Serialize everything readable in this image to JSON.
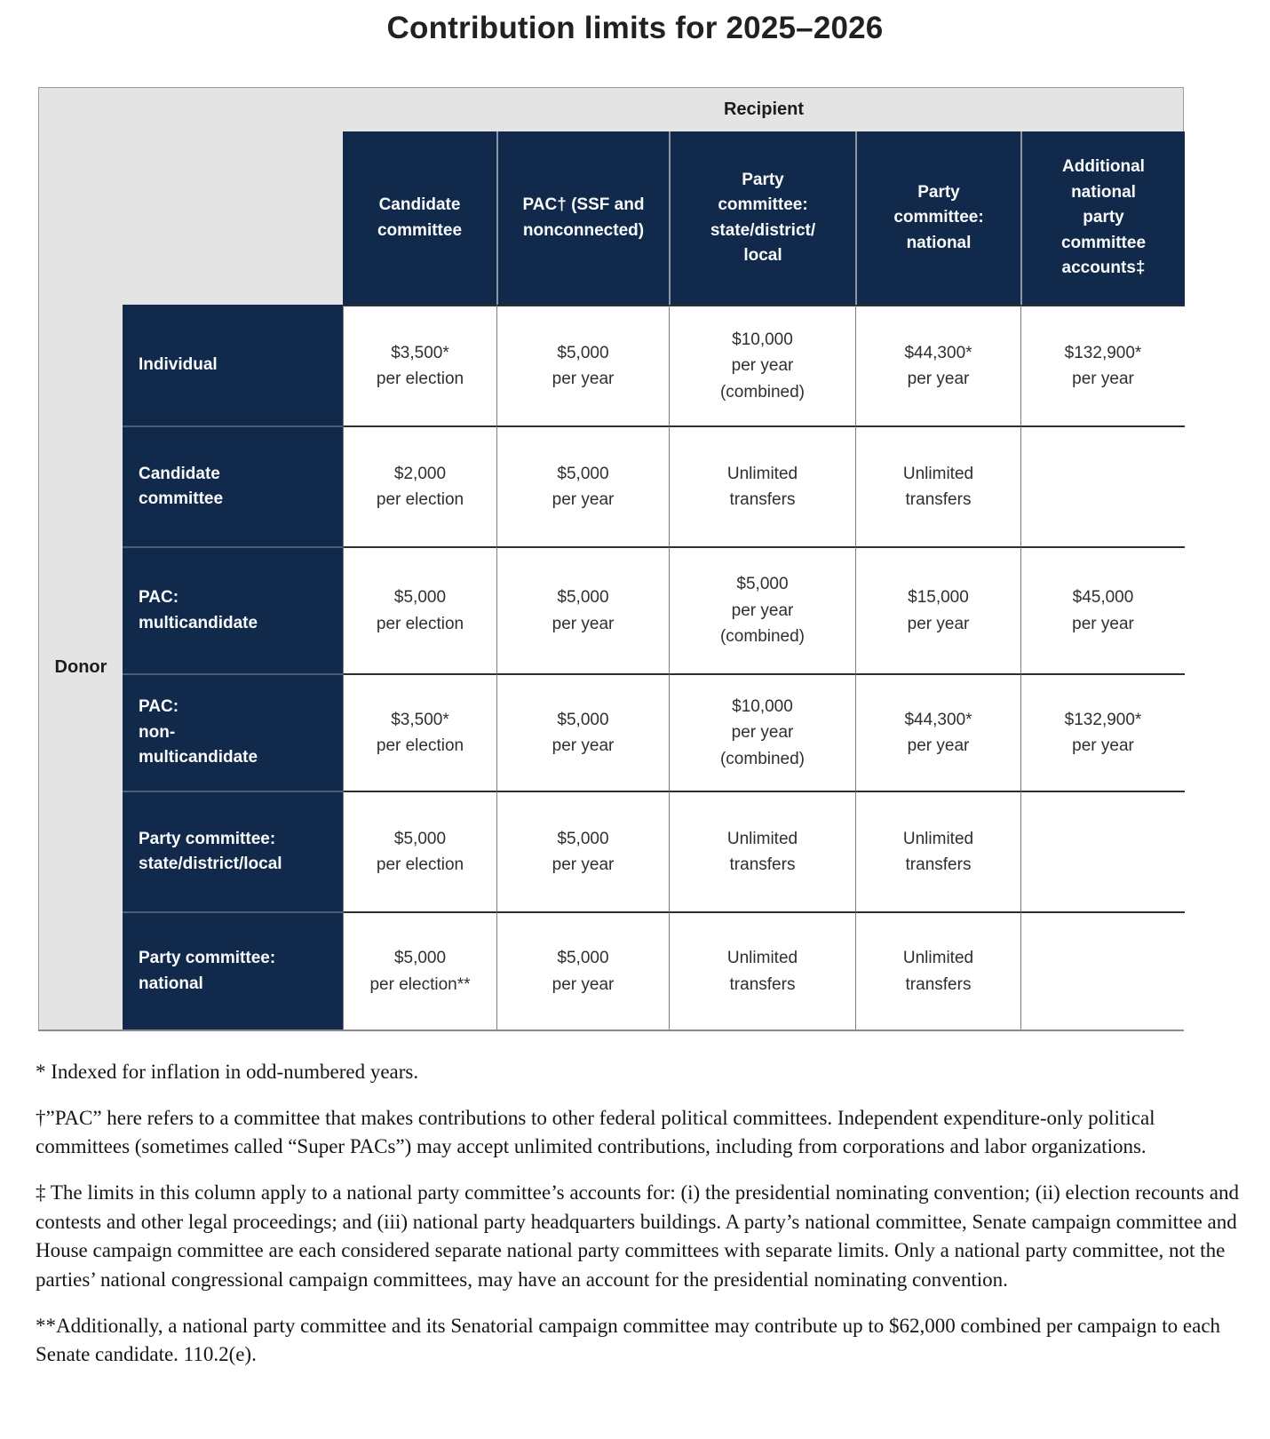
{
  "title": "Contribution limits for 2025–2026",
  "table": {
    "recipient_label": "Recipient",
    "donor_label": "Donor",
    "columns": [
      "Candidate\ncommittee",
      "PAC† (SSF and\nnonconnected)",
      "Party\ncommittee:\nstate/district/\nlocal",
      "Party\ncommittee:\nnational",
      "Additional\nnational\nparty\ncommittee\naccounts‡"
    ],
    "rows": [
      {
        "label": "Individual",
        "cells": [
          "$3,500*\nper election",
          "$5,000\nper year",
          "$10,000\nper year\n(combined)",
          "$44,300*\nper year",
          "$132,900*\nper year"
        ]
      },
      {
        "label": "Candidate\ncommittee",
        "cells": [
          "$2,000\nper election",
          "$5,000\nper year",
          "Unlimited\ntransfers",
          "Unlimited\ntransfers",
          ""
        ]
      },
      {
        "label": "PAC:\nmulticandidate",
        "cells": [
          "$5,000\nper election",
          "$5,000\nper year",
          "$5,000\nper year\n(combined)",
          "$15,000\nper year",
          "$45,000\nper year"
        ]
      },
      {
        "label": "PAC:\nnon-\nmulticandidate",
        "cells": [
          "$3,500*\nper election",
          "$5,000\nper year",
          "$10,000\nper year\n(combined)",
          "$44,300*\nper year",
          "$132,900*\nper year"
        ]
      },
      {
        "label": "Party committee:\nstate/district/local",
        "cells": [
          "$5,000\nper election",
          "$5,000\nper year",
          "Unlimited\ntransfers",
          "Unlimited\ntransfers",
          ""
        ]
      },
      {
        "label": "Party committee:\nnational",
        "cells": [
          "$5,000\nper election**",
          "$5,000\nper year",
          "Unlimited\ntransfers",
          "Unlimited\ntransfers",
          ""
        ]
      }
    ]
  },
  "footnotes": [
    "* Indexed for inflation in odd-numbered years.",
    "†”PAC” here refers to a committee that makes contributions to other federal political committees. Independent expenditure-only political committees (sometimes called “Super PACs”) may accept unlimited contributions, including from corporations and labor organizations.",
    "‡ The limits in this column apply to a national party committee’s accounts for: (i) the presidential nominating convention; (ii) election recounts and contests and other legal proceedings; and (iii) national party headquarters buildings. A party’s national committee, Senate campaign committee and House campaign committee are each considered separate national party committees with separate limits. Only a national party committee, not the parties’ national congressional campaign committees, may have an account for the presidential nominating convention.",
    "**Additionally, a national party committee and its Senatorial campaign committee may contribute up to $62,000 combined per campaign to each Senate candidate. 110.2(e)."
  ],
  "colors": {
    "navy": "#112a4c",
    "band_gray": "#e4e4e4",
    "row_border": "#2e2e2e"
  }
}
